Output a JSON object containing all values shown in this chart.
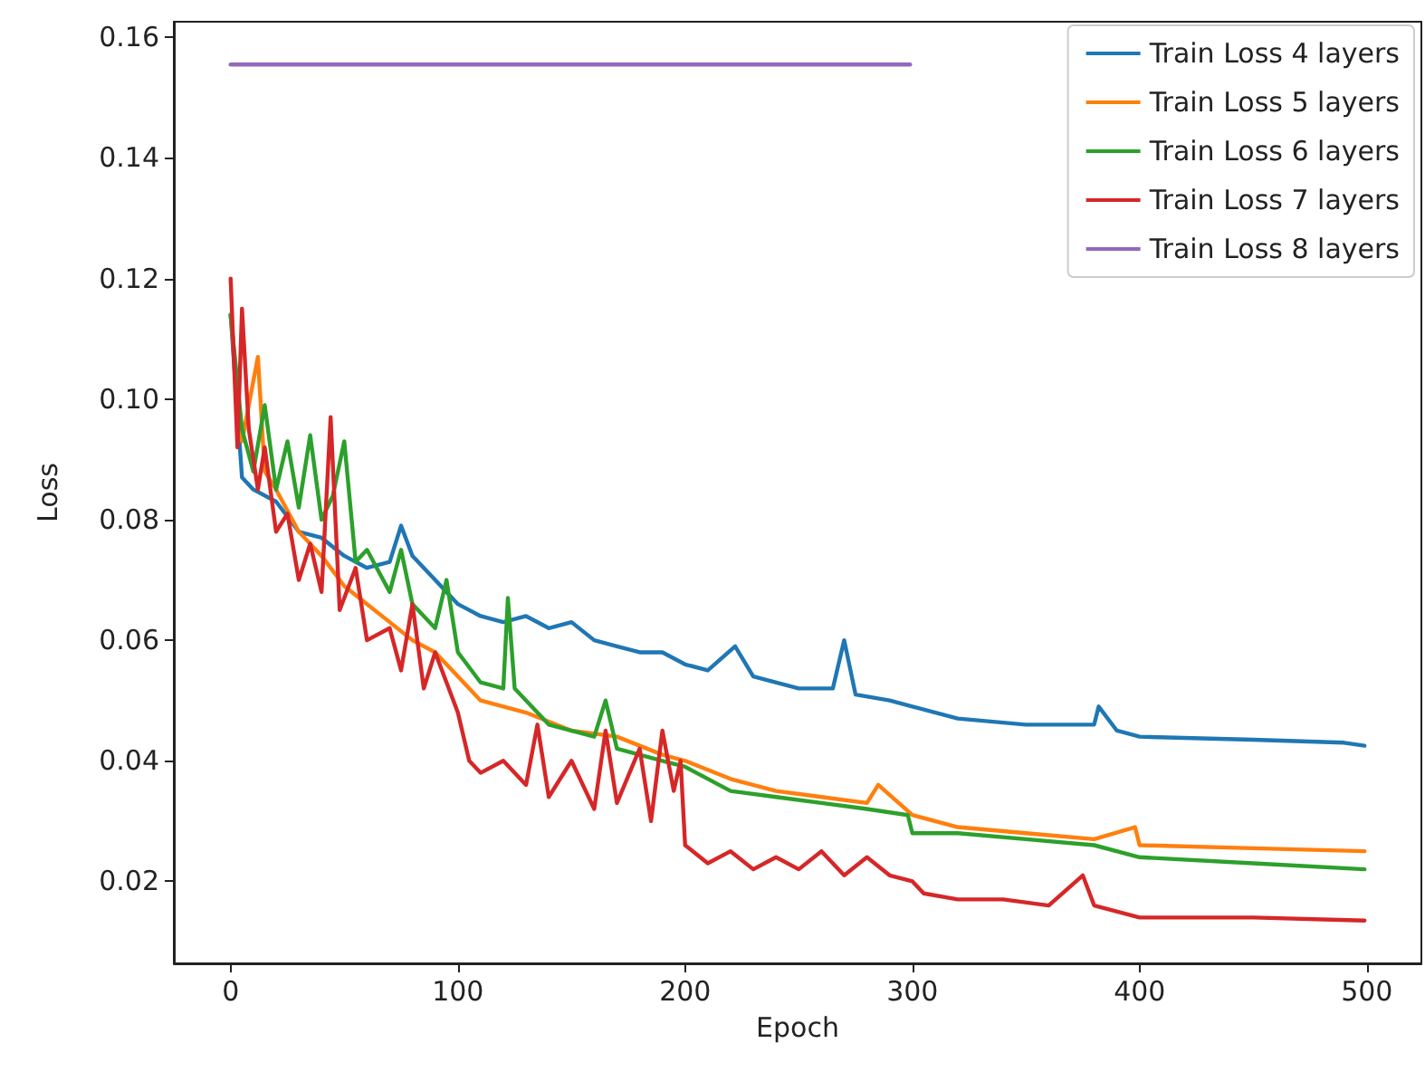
{
  "chart_data": {
    "type": "line",
    "xlabel": "Epoch",
    "ylabel": "Loss",
    "xlim": [
      -25,
      524
    ],
    "xticks": [
      0,
      100,
      200,
      300,
      400,
      500
    ],
    "ylim": [
      0.0064,
      0.1626
    ],
    "yticks": [
      0.02,
      0.04,
      0.06,
      0.08,
      {
        "value": 0.1,
        "label": "0.10"
      },
      0.12,
      0.14,
      0.16
    ],
    "grid": false,
    "legend": "top right",
    "marker": "none",
    "line_style": "solid",
    "series": [
      {
        "name": "Train Loss 4 layers",
        "color": "#1f77b4",
        "x": [
          0,
          5,
          10,
          20,
          30,
          40,
          50,
          60,
          70,
          75,
          80,
          90,
          100,
          110,
          120,
          130,
          140,
          150,
          160,
          170,
          180,
          190,
          200,
          210,
          222,
          230,
          250,
          265,
          270,
          275,
          290,
          300,
          320,
          350,
          380,
          382,
          390,
          400,
          450,
          490,
          499
        ],
        "values": [
          0.114,
          0.087,
          0.085,
          0.083,
          0.078,
          0.077,
          0.074,
          0.072,
          0.073,
          0.079,
          0.074,
          0.07,
          0.066,
          0.064,
          0.063,
          0.064,
          0.062,
          0.063,
          0.06,
          0.059,
          0.058,
          0.058,
          0.056,
          0.055,
          0.059,
          0.054,
          0.052,
          0.052,
          0.06,
          0.051,
          0.05,
          0.049,
          0.047,
          0.046,
          0.046,
          0.049,
          0.045,
          0.044,
          0.0435,
          0.043,
          0.0425
        ]
      },
      {
        "name": "Train Loss 5 layers",
        "color": "#ff7f0e",
        "x": [
          0,
          5,
          12,
          15,
          20,
          30,
          40,
          50,
          60,
          70,
          80,
          90,
          100,
          110,
          120,
          130,
          150,
          170,
          190,
          200,
          220,
          240,
          260,
          280,
          285,
          300,
          320,
          350,
          380,
          398,
          400,
          450,
          499
        ],
        "values": [
          0.114,
          0.093,
          0.107,
          0.088,
          0.085,
          0.078,
          0.074,
          0.069,
          0.066,
          0.063,
          0.06,
          0.058,
          0.054,
          0.05,
          0.049,
          0.048,
          0.045,
          0.044,
          0.041,
          0.04,
          0.037,
          0.035,
          0.034,
          0.033,
          0.036,
          0.031,
          0.029,
          0.028,
          0.027,
          0.029,
          0.026,
          0.0255,
          0.025
        ]
      },
      {
        "name": "Train Loss 6 layers",
        "color": "#2ca02c",
        "x": [
          0,
          5,
          10,
          15,
          20,
          25,
          30,
          35,
          40,
          45,
          50,
          55,
          60,
          70,
          75,
          80,
          90,
          95,
          100,
          110,
          120,
          122,
          125,
          140,
          160,
          165,
          170,
          190,
          200,
          220,
          240,
          260,
          280,
          298,
          300,
          320,
          350,
          380,
          400,
          450,
          499
        ],
        "values": [
          0.114,
          0.095,
          0.088,
          0.099,
          0.085,
          0.093,
          0.082,
          0.094,
          0.08,
          0.084,
          0.093,
          0.073,
          0.075,
          0.068,
          0.075,
          0.066,
          0.062,
          0.07,
          0.058,
          0.053,
          0.052,
          0.067,
          0.052,
          0.046,
          0.044,
          0.05,
          0.042,
          0.04,
          0.039,
          0.035,
          0.034,
          0.033,
          0.032,
          0.031,
          0.028,
          0.028,
          0.027,
          0.026,
          0.024,
          0.023,
          0.022
        ]
      },
      {
        "name": "Train Loss 7 layers",
        "color": "#d62728",
        "x": [
          0,
          3,
          5,
          8,
          12,
          15,
          20,
          25,
          30,
          35,
          40,
          44,
          48,
          55,
          60,
          70,
          75,
          80,
          85,
          90,
          100,
          105,
          110,
          120,
          130,
          135,
          140,
          150,
          160,
          165,
          170,
          180,
          185,
          190,
          195,
          198,
          200,
          210,
          220,
          230,
          240,
          250,
          260,
          270,
          280,
          290,
          300,
          305,
          320,
          340,
          360,
          375,
          380,
          400,
          450,
          499
        ],
        "values": [
          0.12,
          0.092,
          0.115,
          0.095,
          0.085,
          0.092,
          0.078,
          0.081,
          0.07,
          0.076,
          0.068,
          0.097,
          0.065,
          0.072,
          0.06,
          0.062,
          0.055,
          0.066,
          0.052,
          0.058,
          0.048,
          0.04,
          0.038,
          0.04,
          0.036,
          0.046,
          0.034,
          0.04,
          0.032,
          0.045,
          0.033,
          0.042,
          0.03,
          0.045,
          0.035,
          0.04,
          0.026,
          0.023,
          0.025,
          0.022,
          0.024,
          0.022,
          0.025,
          0.021,
          0.024,
          0.021,
          0.02,
          0.018,
          0.017,
          0.017,
          0.016,
          0.021,
          0.016,
          0.014,
          0.014,
          0.0135
        ]
      },
      {
        "name": "Train Loss 8 layers",
        "color": "#9467bd",
        "x": [
          0,
          299
        ],
        "values": [
          0.1555,
          0.1555
        ]
      }
    ]
  }
}
